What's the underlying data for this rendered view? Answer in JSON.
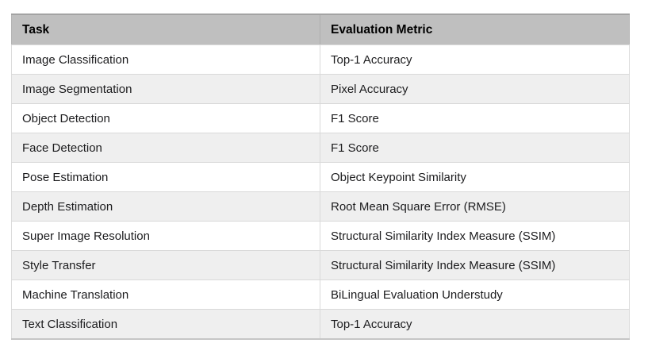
{
  "table": {
    "columns": [
      {
        "label": "Task"
      },
      {
        "label": "Evaluation Metric"
      }
    ],
    "rows": [
      {
        "task": "Image Classification",
        "metric": "Top-1 Accuracy"
      },
      {
        "task": "Image Segmentation",
        "metric": "Pixel Accuracy"
      },
      {
        "task": "Object Detection",
        "metric": "F1 Score"
      },
      {
        "task": "Face Detection",
        "metric": "F1 Score"
      },
      {
        "task": "Pose Estimation",
        "metric": "Object Keypoint Similarity"
      },
      {
        "task": "Depth Estimation",
        "metric": "Root Mean Square Error (RMSE)"
      },
      {
        "task": "Super Image Resolution",
        "metric": "Structural Similarity Index Measure (SSIM)"
      },
      {
        "task": "Style Transfer",
        "metric": "Structural Similarity Index Measure (SSIM)"
      },
      {
        "task": "Machine Translation",
        "metric": "BiLingual Evaluation Understudy"
      },
      {
        "task": "Text Classification",
        "metric": "Top-1 Accuracy"
      }
    ],
    "colors": {
      "header_bg": "#bfbfbf",
      "row_bg": "#ffffff",
      "row_alt_bg": "#efefef",
      "border": "#d9d9d9",
      "outer_top_border": "#a3a3a3"
    }
  }
}
